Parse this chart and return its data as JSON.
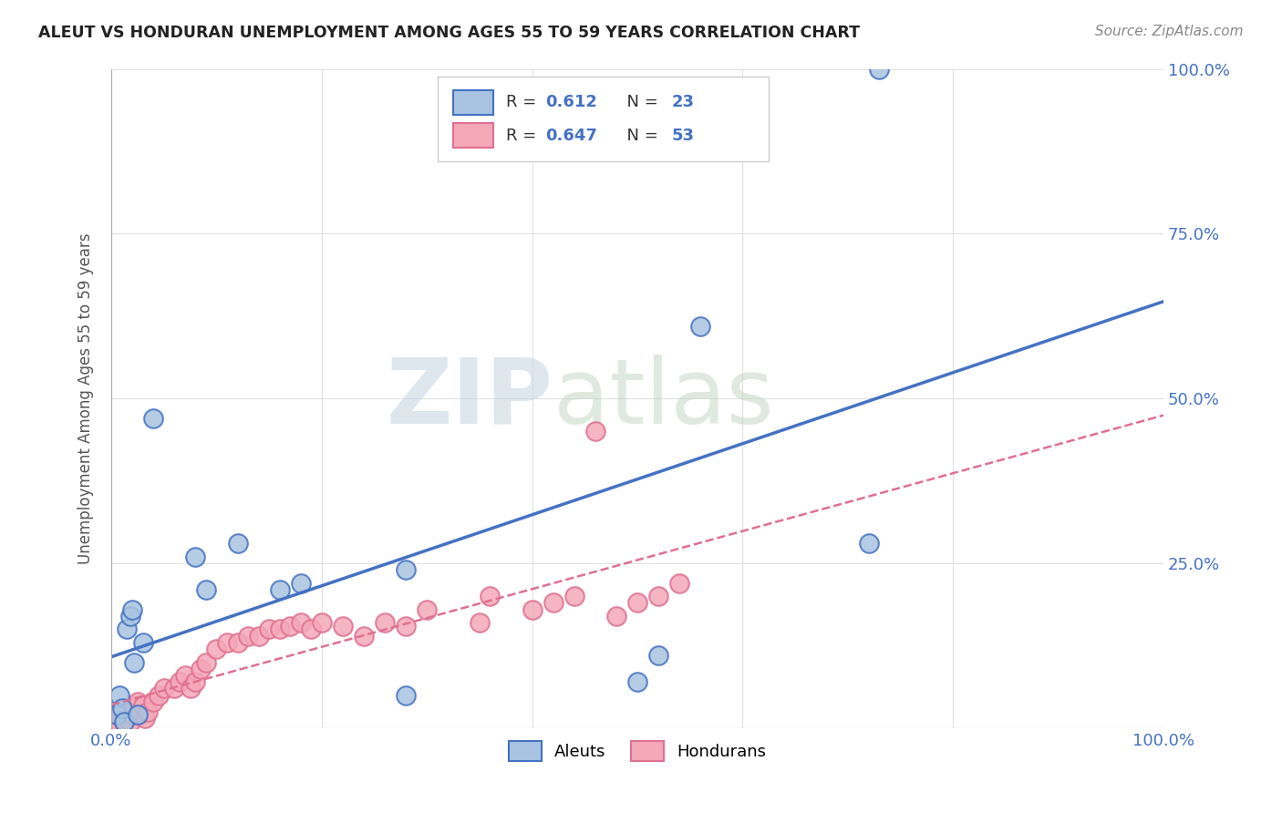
{
  "title": "ALEUT VS HONDURAN UNEMPLOYMENT AMONG AGES 55 TO 59 YEARS CORRELATION CHART",
  "source": "Source: ZipAtlas.com",
  "ylabel": "Unemployment Among Ages 55 to 59 years",
  "xlim": [
    0.0,
    1.0
  ],
  "ylim": [
    0.0,
    1.0
  ],
  "aleut_color": "#a8c4e0",
  "honduran_color": "#f4a8b8",
  "aleut_line_color": "#4472c4",
  "honduran_line_color": "#e07090",
  "legend_r_aleut": "0.612",
  "legend_n_aleut": "23",
  "legend_r_honduran": "0.647",
  "legend_n_honduran": "53",
  "watermark_zip": "ZIP",
  "watermark_atlas": "atlas",
  "aleuts_x": [
    0.005,
    0.008,
    0.01,
    0.012,
    0.015,
    0.018,
    0.02,
    0.022,
    0.025,
    0.03,
    0.04,
    0.08,
    0.09,
    0.12,
    0.16,
    0.18,
    0.28,
    0.28,
    0.5,
    0.52,
    0.56,
    0.72,
    0.73
  ],
  "aleuts_y": [
    0.02,
    0.05,
    0.03,
    0.01,
    0.15,
    0.17,
    0.18,
    0.1,
    0.02,
    0.13,
    0.47,
    0.26,
    0.21,
    0.28,
    0.21,
    0.22,
    0.24,
    0.05,
    0.07,
    0.11,
    0.61,
    0.28,
    1.0
  ],
  "hondurans_x": [
    0.003,
    0.005,
    0.007,
    0.008,
    0.01,
    0.012,
    0.013,
    0.015,
    0.016,
    0.018,
    0.02,
    0.022,
    0.025,
    0.028,
    0.03,
    0.032,
    0.035,
    0.04,
    0.045,
    0.05,
    0.06,
    0.065,
    0.07,
    0.075,
    0.08,
    0.085,
    0.09,
    0.1,
    0.11,
    0.12,
    0.13,
    0.14,
    0.15,
    0.16,
    0.17,
    0.18,
    0.19,
    0.2,
    0.22,
    0.24,
    0.26,
    0.28,
    0.3,
    0.35,
    0.36,
    0.4,
    0.42,
    0.44,
    0.46,
    0.48,
    0.5,
    0.52,
    0.54
  ],
  "hondurans_y": [
    0.01,
    0.02,
    0.01,
    0.005,
    0.015,
    0.01,
    0.02,
    0.03,
    0.015,
    0.01,
    0.02,
    0.035,
    0.04,
    0.02,
    0.035,
    0.015,
    0.025,
    0.04,
    0.05,
    0.06,
    0.06,
    0.07,
    0.08,
    0.06,
    0.07,
    0.09,
    0.1,
    0.12,
    0.13,
    0.13,
    0.14,
    0.14,
    0.15,
    0.15,
    0.155,
    0.16,
    0.15,
    0.16,
    0.155,
    0.14,
    0.16,
    0.155,
    0.18,
    0.16,
    0.2,
    0.18,
    0.19,
    0.2,
    0.45,
    0.17,
    0.19,
    0.2,
    0.22
  ],
  "background_color": "#ffffff",
  "grid_color": "#dddddd"
}
